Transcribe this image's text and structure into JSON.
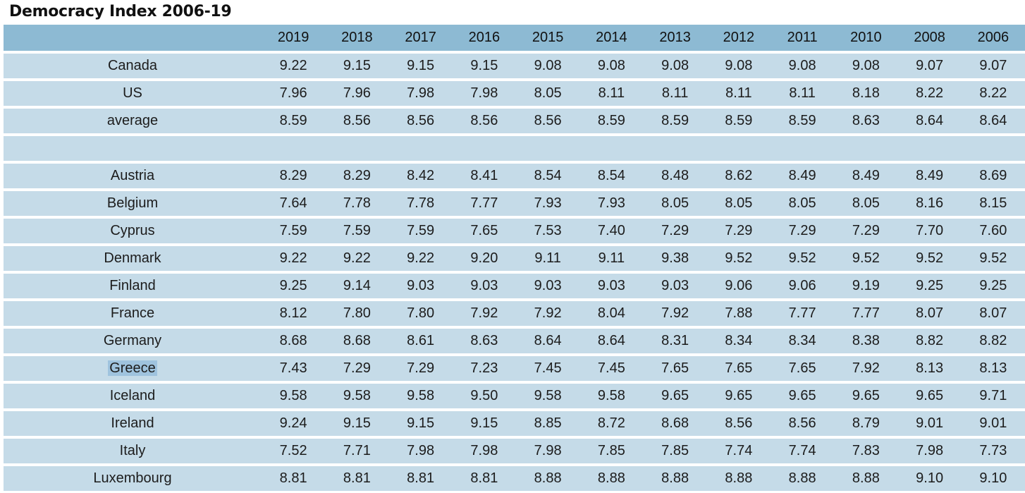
{
  "title": "Democracy Index 2006-19",
  "years": [
    "2019",
    "2018",
    "2017",
    "2016",
    "2015",
    "2014",
    "2013",
    "2012",
    "2011",
    "2010",
    "2008",
    "2006"
  ],
  "rows": [
    {
      "country": "Canada",
      "values": [
        "9.22",
        "9.15",
        "9.15",
        "9.15",
        "9.08",
        "9.08",
        "9.08",
        "9.08",
        "9.08",
        "9.08",
        "9.07",
        "9.07"
      ]
    },
    {
      "country": "US",
      "values": [
        "7.96",
        "7.96",
        "7.98",
        "7.98",
        "8.05",
        "8.11",
        "8.11",
        "8.11",
        "8.11",
        "8.18",
        "8.22",
        "8.22"
      ]
    },
    {
      "country": "average",
      "values": [
        "8.59",
        "8.56",
        "8.56",
        "8.56",
        "8.56",
        "8.59",
        "8.59",
        "8.59",
        "8.59",
        "8.63",
        "8.64",
        "8.64"
      ]
    },
    {
      "country": "",
      "values": [
        "",
        "",
        "",
        "",
        "",
        "",
        "",
        "",
        "",
        "",
        "",
        ""
      ]
    },
    {
      "country": "Austria",
      "values": [
        "8.29",
        "8.29",
        "8.42",
        "8.41",
        "8.54",
        "8.54",
        "8.48",
        "8.62",
        "8.49",
        "8.49",
        "8.49",
        "8.69"
      ]
    },
    {
      "country": "Belgium",
      "values": [
        "7.64",
        "7.78",
        "7.78",
        "7.77",
        "7.93",
        "7.93",
        "8.05",
        "8.05",
        "8.05",
        "8.05",
        "8.16",
        "8.15"
      ]
    },
    {
      "country": "Cyprus",
      "values": [
        "7.59",
        "7.59",
        "7.59",
        "7.65",
        "7.53",
        "7.40",
        "7.29",
        "7.29",
        "7.29",
        "7.29",
        "7.70",
        "7.60"
      ]
    },
    {
      "country": "Denmark",
      "values": [
        "9.22",
        "9.22",
        "9.22",
        "9.20",
        "9.11",
        "9.11",
        "9.38",
        "9.52",
        "9.52",
        "9.52",
        "9.52",
        "9.52"
      ]
    },
    {
      "country": "Finland",
      "values": [
        "9.25",
        "9.14",
        "9.03",
        "9.03",
        "9.03",
        "9.03",
        "9.03",
        "9.06",
        "9.06",
        "9.19",
        "9.25",
        "9.25"
      ]
    },
    {
      "country": "France",
      "values": [
        "8.12",
        "7.80",
        "7.80",
        "7.92",
        "7.92",
        "8.04",
        "7.92",
        "7.88",
        "7.77",
        "7.77",
        "8.07",
        "8.07"
      ]
    },
    {
      "country": "Germany",
      "values": [
        "8.68",
        "8.68",
        "8.61",
        "8.63",
        "8.64",
        "8.64",
        "8.31",
        "8.34",
        "8.34",
        "8.38",
        "8.82",
        "8.82"
      ]
    },
    {
      "country": "Greece",
      "highlighted": true,
      "values": [
        "7.43",
        "7.29",
        "7.29",
        "7.23",
        "7.45",
        "7.45",
        "7.65",
        "7.65",
        "7.65",
        "7.92",
        "8.13",
        "8.13"
      ]
    },
    {
      "country": "Iceland",
      "values": [
        "9.58",
        "9.58",
        "9.58",
        "9.50",
        "9.58",
        "9.58",
        "9.65",
        "9.65",
        "9.65",
        "9.65",
        "9.65",
        "9.71"
      ]
    },
    {
      "country": "Ireland",
      "values": [
        "9.24",
        "9.15",
        "9.15",
        "9.15",
        "8.85",
        "8.72",
        "8.68",
        "8.56",
        "8.56",
        "8.79",
        "9.01",
        "9.01"
      ]
    },
    {
      "country": "Italy",
      "values": [
        "7.52",
        "7.71",
        "7.98",
        "7.98",
        "7.98",
        "7.85",
        "7.85",
        "7.74",
        "7.74",
        "7.83",
        "7.98",
        "7.73"
      ]
    },
    {
      "country": "Luxembourg",
      "values": [
        "8.81",
        "8.81",
        "8.81",
        "8.81",
        "8.88",
        "8.88",
        "8.88",
        "8.88",
        "8.88",
        "8.88",
        "9.10",
        "9.10"
      ]
    }
  ],
  "colors": {
    "header_bg": "#8dbad3",
    "row_bg": "#c5dbe8",
    "selection_bg": "#9fc3de"
  }
}
